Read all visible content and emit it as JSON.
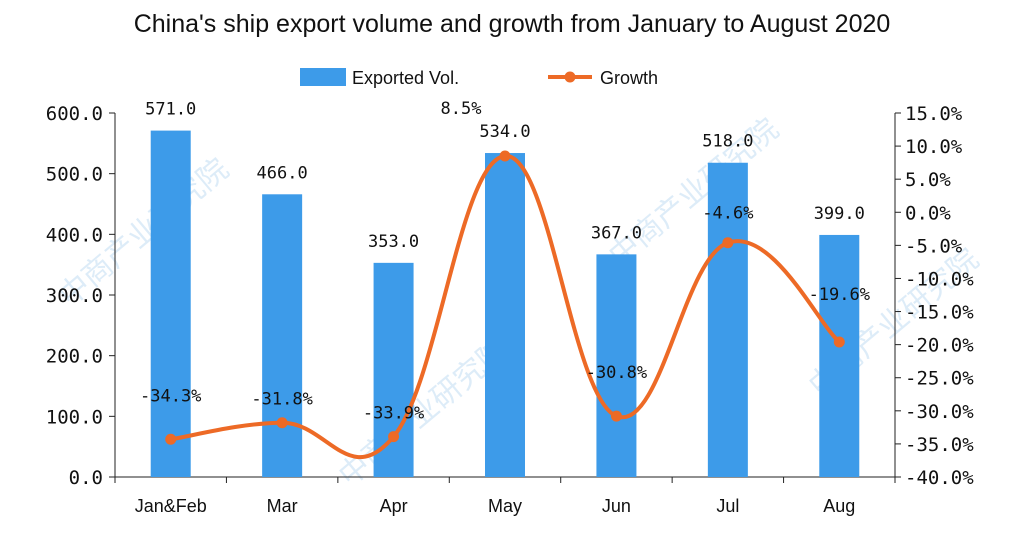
{
  "chart_data": {
    "type": "bar",
    "title": "China's ship export volume and growth from January to August 2020",
    "categories": [
      "Jan&Feb",
      "Mar",
      "Apr",
      "May",
      "Jun",
      "Jul",
      "Aug"
    ],
    "series": [
      {
        "name": "Exported Vol.",
        "type": "bar",
        "axis": "left",
        "color": "#3d9be9",
        "values": [
          571.0,
          466.0,
          353.0,
          534.0,
          367.0,
          518.0,
          399.0
        ],
        "labels": [
          "571.0",
          "466.0",
          "353.0",
          "534.0",
          "367.0",
          "518.0",
          "399.0"
        ]
      },
      {
        "name": "Growth",
        "type": "line",
        "axis": "right",
        "smooth": true,
        "color": "#ed6a26",
        "values": [
          -34.3,
          -31.8,
          -33.9,
          8.5,
          -30.8,
          -4.6,
          -19.6
        ],
        "labels": [
          "-34.3%",
          "-31.8%",
          "-33.9%",
          "8.5%",
          "-30.8%",
          "-4.6%",
          "-19.6%"
        ]
      }
    ],
    "y_left": {
      "min": 0,
      "max": 600,
      "ticks": [
        "0.0",
        "100.0",
        "200.0",
        "300.0",
        "400.0",
        "500.0",
        "600.0"
      ]
    },
    "y_right": {
      "min": -40,
      "max": 15,
      "ticks": [
        "-40.0%",
        "-35.0%",
        "-30.0%",
        "-25.0%",
        "-20.0%",
        "-15.0%",
        "-10.0%",
        "-5.0%",
        "0.0%",
        "5.0%",
        "10.0%",
        "15.0%"
      ]
    },
    "legend_position": "top",
    "grid": false
  },
  "watermark": "中商产业研究院"
}
